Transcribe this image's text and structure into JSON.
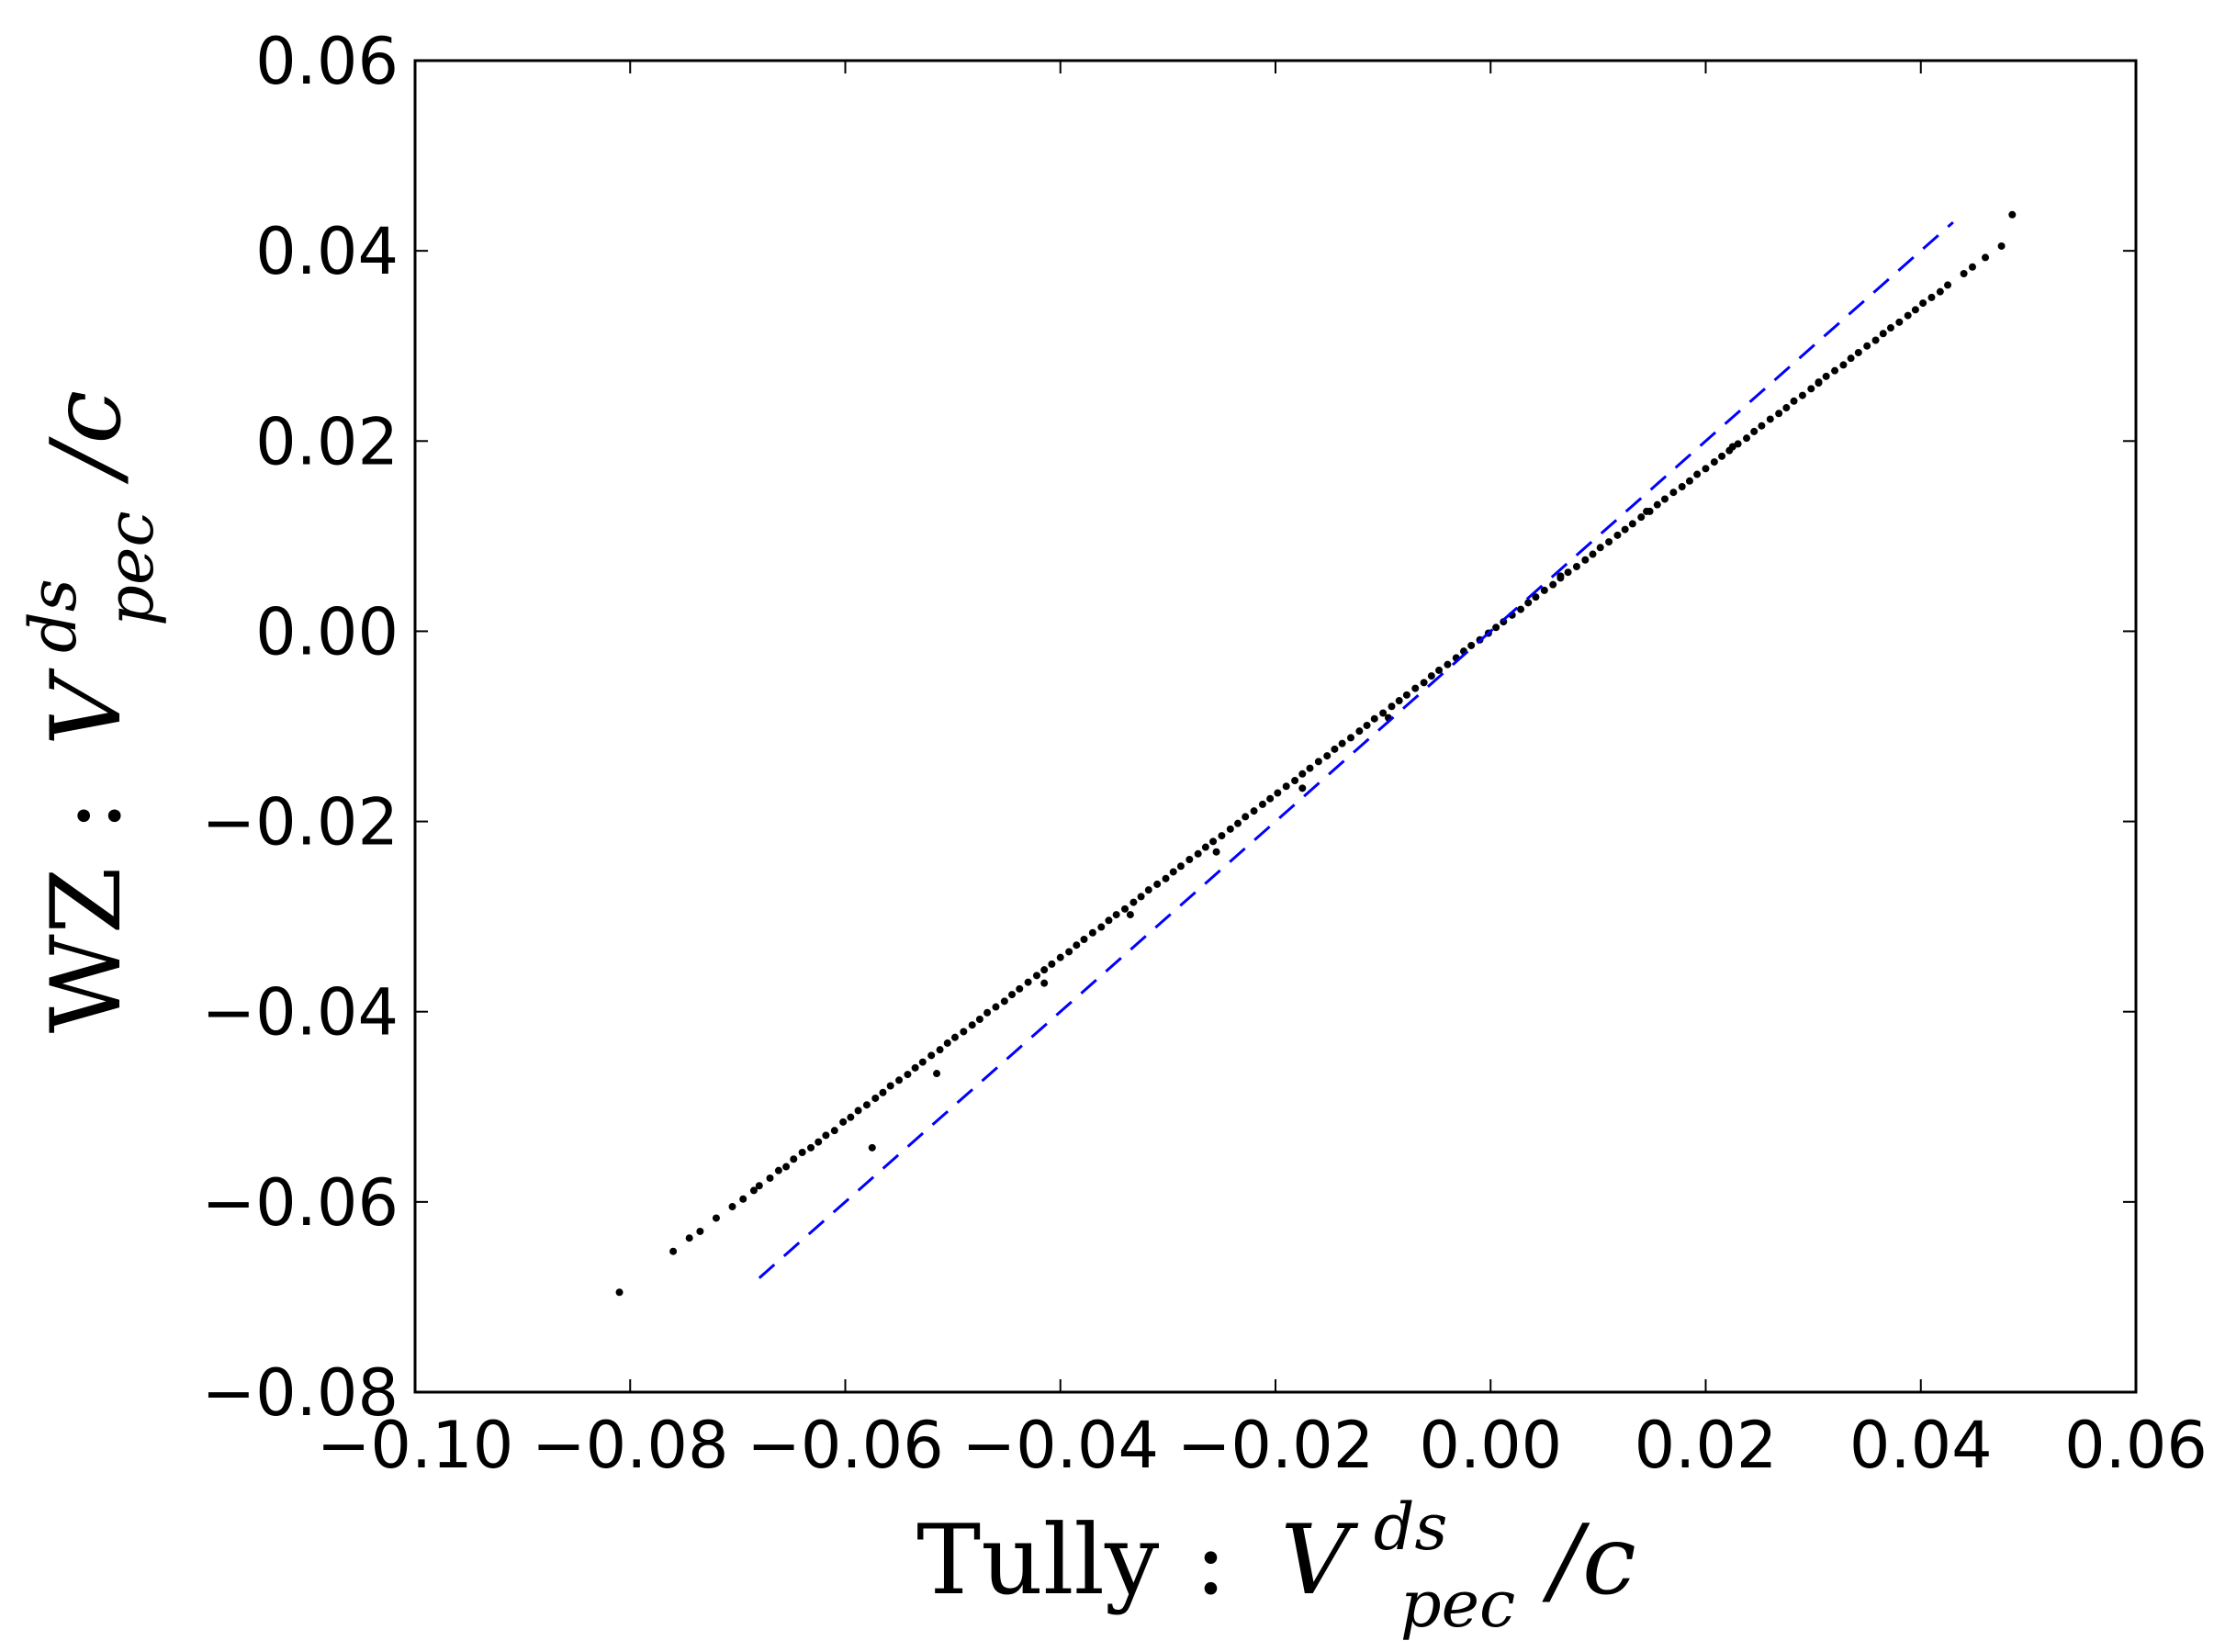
{
  "chart_data": {
    "type": "scatter",
    "xlabel": {
      "prefix": "Tully",
      "sep": ":",
      "var": "V",
      "sup": "ds",
      "sub": "pec",
      "suffix": "/c"
    },
    "ylabel": {
      "prefix": "WZ",
      "sep": ":",
      "var": "V",
      "sup": "ds",
      "sub": "pec",
      "suffix": "/c"
    },
    "xlim": [
      -0.1,
      0.06
    ],
    "ylim": [
      -0.08,
      0.06
    ],
    "xticks": [
      -0.1,
      -0.08,
      -0.06,
      -0.04,
      -0.02,
      0.0,
      0.02,
      0.04,
      0.06
    ],
    "xtick_labels": [
      "−0.10",
      "−0.08",
      "−0.06",
      "−0.04",
      "−0.02",
      "0.00",
      "0.02",
      "0.04",
      "0.06"
    ],
    "yticks": [
      -0.08,
      -0.06,
      -0.04,
      -0.02,
      0.0,
      0.02,
      0.04,
      0.06
    ],
    "ytick_labels": [
      "−0.08",
      "−0.06",
      "−0.04",
      "−0.02",
      "0.00",
      "0.02",
      "0.04",
      "0.06"
    ],
    "grid": false,
    "reference_line": {
      "style": "dashed",
      "color": "#0000ff",
      "x": [
        -0.068,
        0.043
      ],
      "y": [
        -0.068,
        0.043
      ]
    },
    "series": [
      {
        "marker_color": "#000000",
        "x": [
          -0.081,
          -0.076,
          -0.0745,
          -0.0735,
          -0.072,
          -0.0705,
          -0.0695,
          -0.0685,
          -0.068,
          -0.067,
          -0.0662,
          -0.0655,
          -0.0648,
          -0.064,
          -0.0632,
          -0.0625,
          -0.0618,
          -0.061,
          -0.0602,
          -0.0595,
          -0.0588,
          -0.058,
          -0.0572,
          -0.0565,
          -0.0558,
          -0.055,
          -0.0542,
          -0.0535,
          -0.0528,
          -0.052,
          -0.0512,
          -0.0505,
          -0.0498,
          -0.049,
          -0.0482,
          -0.0475,
          -0.0468,
          -0.046,
          -0.0452,
          -0.0445,
          -0.0438,
          -0.043,
          -0.0422,
          -0.0415,
          -0.0408,
          -0.04,
          -0.0392,
          -0.0385,
          -0.0378,
          -0.037,
          -0.0362,
          -0.0355,
          -0.0348,
          -0.034,
          -0.0332,
          -0.0325,
          -0.0318,
          -0.031,
          -0.0302,
          -0.0295,
          -0.0288,
          -0.028,
          -0.0272,
          -0.0265,
          -0.0258,
          -0.025,
          -0.0242,
          -0.0235,
          -0.0228,
          -0.022,
          -0.0212,
          -0.0205,
          -0.0198,
          -0.019,
          -0.0182,
          -0.0175,
          -0.0168,
          -0.016,
          -0.0152,
          -0.0145,
          -0.0138,
          -0.013,
          -0.0122,
          -0.0115,
          -0.0108,
          -0.01,
          -0.0092,
          -0.0085,
          -0.0078,
          -0.007,
          -0.0062,
          -0.0055,
          -0.0048,
          -0.004,
          -0.0032,
          -0.0025,
          -0.0018,
          -0.001,
          -0.0002,
          0.0005,
          0.0012,
          0.002,
          0.0028,
          0.0035,
          0.0042,
          0.005,
          0.0058,
          0.0065,
          0.0072,
          0.008,
          0.0088,
          0.0095,
          0.0102,
          0.011,
          0.0118,
          0.0125,
          0.0132,
          0.014,
          0.0148,
          0.0155,
          0.0162,
          0.017,
          0.0178,
          0.0185,
          0.0192,
          0.02,
          0.0208,
          0.0215,
          0.0222,
          0.023,
          0.0238,
          0.0245,
          0.0252,
          0.026,
          0.0268,
          0.0275,
          0.0282,
          0.029,
          0.0298,
          0.0305,
          0.0312,
          0.032,
          0.0328,
          0.0335,
          0.0342,
          0.035,
          0.0358,
          0.0365,
          0.0372,
          0.038,
          0.0388,
          0.0395,
          0.0402,
          0.041,
          0.0418,
          0.0425,
          0.044,
          0.0448,
          0.046,
          0.0475,
          0.0485,
          -0.0575,
          -0.0515,
          -0.0415,
          -0.0335,
          -0.0255,
          -0.0175,
          -0.0095,
          0.0065,
          0.0145,
          0.0225,
          0.0305
        ],
        "y": [
          -0.0695,
          -0.0652,
          -0.0638,
          -0.0631,
          -0.0617,
          -0.0605,
          -0.0597,
          -0.0588,
          -0.0583,
          -0.0575,
          -0.0567,
          -0.0563,
          -0.0555,
          -0.0548,
          -0.0543,
          -0.0537,
          -0.053,
          -0.0525,
          -0.0516,
          -0.0511,
          -0.0504,
          -0.0498,
          -0.0491,
          -0.0485,
          -0.0478,
          -0.0472,
          -0.0466,
          -0.0459,
          -0.0453,
          -0.0446,
          -0.044,
          -0.0433,
          -0.0427,
          -0.0421,
          -0.0414,
          -0.0408,
          -0.0401,
          -0.0395,
          -0.0389,
          -0.0382,
          -0.0376,
          -0.0369,
          -0.0362,
          -0.0356,
          -0.035,
          -0.0343,
          -0.0337,
          -0.033,
          -0.0324,
          -0.0317,
          -0.0311,
          -0.0304,
          -0.0298,
          -0.0292,
          -0.0285,
          -0.0279,
          -0.0272,
          -0.0266,
          -0.026,
          -0.0253,
          -0.0247,
          -0.024,
          -0.0234,
          -0.0227,
          -0.0221,
          -0.0215,
          -0.0208,
          -0.0202,
          -0.0195,
          -0.0189,
          -0.0182,
          -0.0176,
          -0.017,
          -0.0163,
          -0.0157,
          -0.015,
          -0.0144,
          -0.0137,
          -0.0131,
          -0.0124,
          -0.0118,
          -0.0112,
          -0.0105,
          -0.0099,
          -0.0092,
          -0.0086,
          -0.0079,
          -0.0073,
          -0.0067,
          -0.006,
          -0.0054,
          -0.0047,
          -0.0041,
          -0.0035,
          -0.0028,
          -0.0021,
          -0.0015,
          -0.0009,
          -0.0002,
          0.0004,
          0.001,
          0.0017,
          0.0023,
          0.003,
          0.0036,
          0.0043,
          0.0049,
          0.0056,
          0.0062,
          0.0068,
          0.0075,
          0.0081,
          0.0088,
          0.0094,
          0.0101,
          0.0107,
          0.0113,
          0.012,
          0.0126,
          0.0133,
          0.0139,
          0.0146,
          0.0152,
          0.0158,
          0.0165,
          0.0171,
          0.0178,
          0.0184,
          0.019,
          0.0197,
          0.0203,
          0.021,
          0.0216,
          0.0223,
          0.0229,
          0.0235,
          0.0242,
          0.0248,
          0.0255,
          0.0261,
          0.0268,
          0.0274,
          0.028,
          0.0287,
          0.0293,
          0.03,
          0.0306,
          0.0313,
          0.0319,
          0.0325,
          0.0332,
          0.0338,
          0.0345,
          0.0351,
          0.0357,
          0.0364,
          0.0376,
          0.0383,
          0.0393,
          0.0405,
          0.0438,
          -0.0543,
          -0.0465,
          -0.037,
          -0.0298,
          -0.0232,
          -0.0165,
          -0.0091,
          0.0058,
          0.0126,
          0.0194,
          0.0262
        ]
      }
    ]
  }
}
